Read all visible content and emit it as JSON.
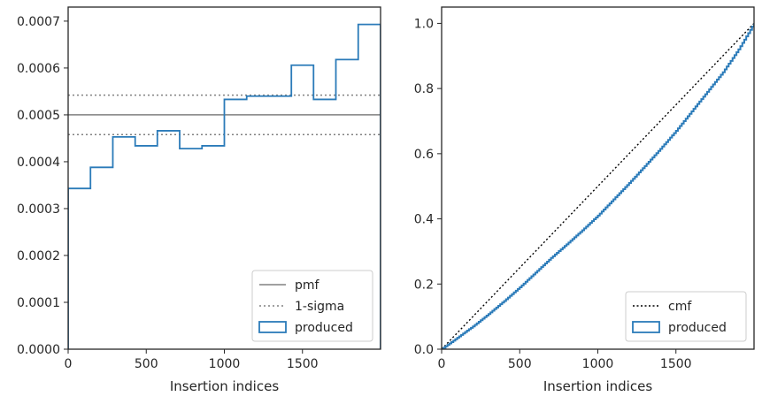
{
  "chart_data": [
    {
      "type": "histogram-step",
      "xlabel": "Insertion indices",
      "ylabel": "",
      "xlim": [
        0,
        2000
      ],
      "ylim": [
        0,
        0.00073
      ],
      "xticks": [
        0,
        500,
        1000,
        1500
      ],
      "xtick_labels": [
        "0",
        "500",
        "1000",
        "1500"
      ],
      "yticks": [
        0,
        0.0001,
        0.0002,
        0.0003,
        0.0004,
        0.0005,
        0.0006,
        0.0007
      ],
      "ytick_labels": [
        "0.0000",
        "0.0001",
        "0.0002",
        "0.0003",
        "0.0004",
        "0.0005",
        "0.0006",
        "0.0007"
      ],
      "legend_position": "lower right",
      "lines": {
        "pmf": 0.0005,
        "sigma": [
          0.000458,
          0.000542
        ]
      },
      "bins": [
        0,
        143,
        286,
        429,
        571,
        714,
        857,
        1000,
        1143,
        1286,
        1429,
        1571,
        1714,
        1857,
        2000
      ],
      "values": [
        0.000343,
        0.000388,
        0.000453,
        0.000434,
        0.000466,
        0.000428,
        0.000434,
        0.000533,
        0.00054,
        0.00054,
        0.000606,
        0.000533,
        0.000618,
        0.000693
      ],
      "legend": [
        {
          "label": "pmf",
          "style": "solid-gray"
        },
        {
          "label": "1-sigma",
          "style": "dotted-gray"
        },
        {
          "label": "produced",
          "style": "box-blue"
        }
      ],
      "colors": {
        "produced": "#2b7bb9",
        "reference": "#808080"
      }
    },
    {
      "type": "line",
      "xlabel": "Insertion indices",
      "ylabel": "",
      "xlim": [
        0,
        2000
      ],
      "ylim": [
        0,
        1.05
      ],
      "xticks": [
        0,
        500,
        1000,
        1500
      ],
      "xtick_labels": [
        "0",
        "500",
        "1000",
        "1500"
      ],
      "yticks": [
        0,
        0.2,
        0.4,
        0.6,
        0.8,
        1.0
      ],
      "ytick_labels": [
        "0.0",
        "0.2",
        "0.4",
        "0.6",
        "0.8",
        "1.0"
      ],
      "legend_position": "lower right",
      "series": [
        {
          "name": "cmf",
          "style": "dotted-black",
          "x": [
            0,
            2000
          ],
          "y": [
            0,
            1
          ]
        },
        {
          "name": "produced",
          "style": "step-blue",
          "x": [
            0,
            100,
            200,
            300,
            400,
            500,
            600,
            700,
            800,
            900,
            1000,
            1100,
            1200,
            1300,
            1400,
            1500,
            1600,
            1700,
            1800,
            1900,
            2000
          ],
          "y": [
            0,
            0.035,
            0.07,
            0.108,
            0.148,
            0.19,
            0.235,
            0.28,
            0.322,
            0.365,
            0.41,
            0.46,
            0.51,
            0.562,
            0.615,
            0.67,
            0.73,
            0.79,
            0.85,
            0.92,
            1.0
          ]
        }
      ],
      "legend": [
        {
          "label": "cmf",
          "style": "dotted-black"
        },
        {
          "label": "produced",
          "style": "box-blue"
        }
      ],
      "colors": {
        "produced": "#2b7bb9",
        "cmf": "#000000"
      }
    }
  ]
}
